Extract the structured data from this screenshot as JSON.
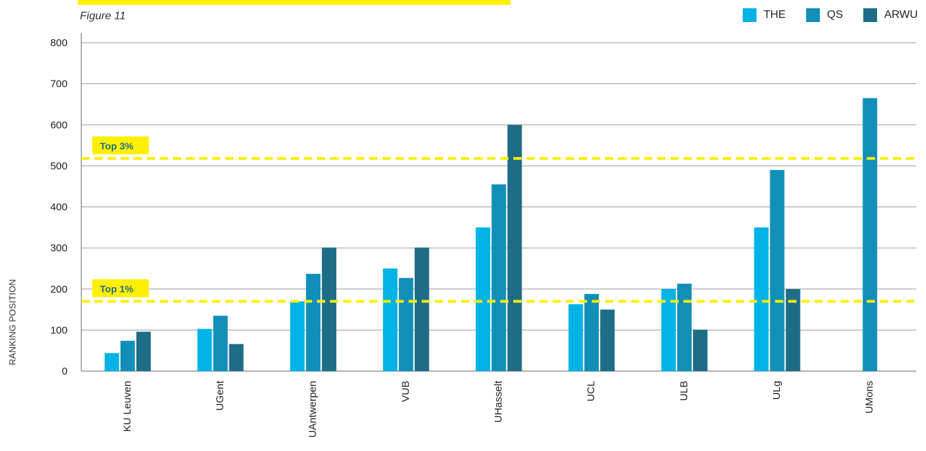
{
  "figure_label": "Figure 11",
  "legend": [
    {
      "name": "THE",
      "color": "#00b3e6"
    },
    {
      "name": "QS",
      "color": "#128fb9"
    },
    {
      "name": "ARWU",
      "color": "#1e6d88"
    }
  ],
  "reference_lines": [
    {
      "label": "Top 3%",
      "value": 518
    },
    {
      "label": "Top 1%",
      "value": 170
    }
  ],
  "colors": {
    "highlight": "#ffef00",
    "reference_line": "#ffef00",
    "reference_label_text": "#1f6f8b"
  },
  "chart_data": {
    "type": "bar",
    "ylabel": "RANKING POSITION",
    "ylim": [
      0,
      800
    ],
    "yticks": [
      0,
      100,
      200,
      300,
      400,
      500,
      600,
      700,
      800
    ],
    "grid": true,
    "legend_position": "top-right",
    "categories": [
      "KU Leuven",
      "UGent",
      "UAntwerpen",
      "VUB",
      "UHasselt",
      "UCL",
      "ULB",
      "ULg",
      "UMons"
    ],
    "series": [
      {
        "name": "THE",
        "values": [
          44,
          103,
          170,
          250,
          350,
          163,
          200,
          350,
          null
        ]
      },
      {
        "name": "QS",
        "values": [
          74,
          135,
          237,
          227,
          455,
          188,
          213,
          490,
          665
        ]
      },
      {
        "name": "ARWU",
        "values": [
          96,
          66,
          301,
          301,
          600,
          150,
          101,
          200,
          null
        ]
      }
    ]
  }
}
